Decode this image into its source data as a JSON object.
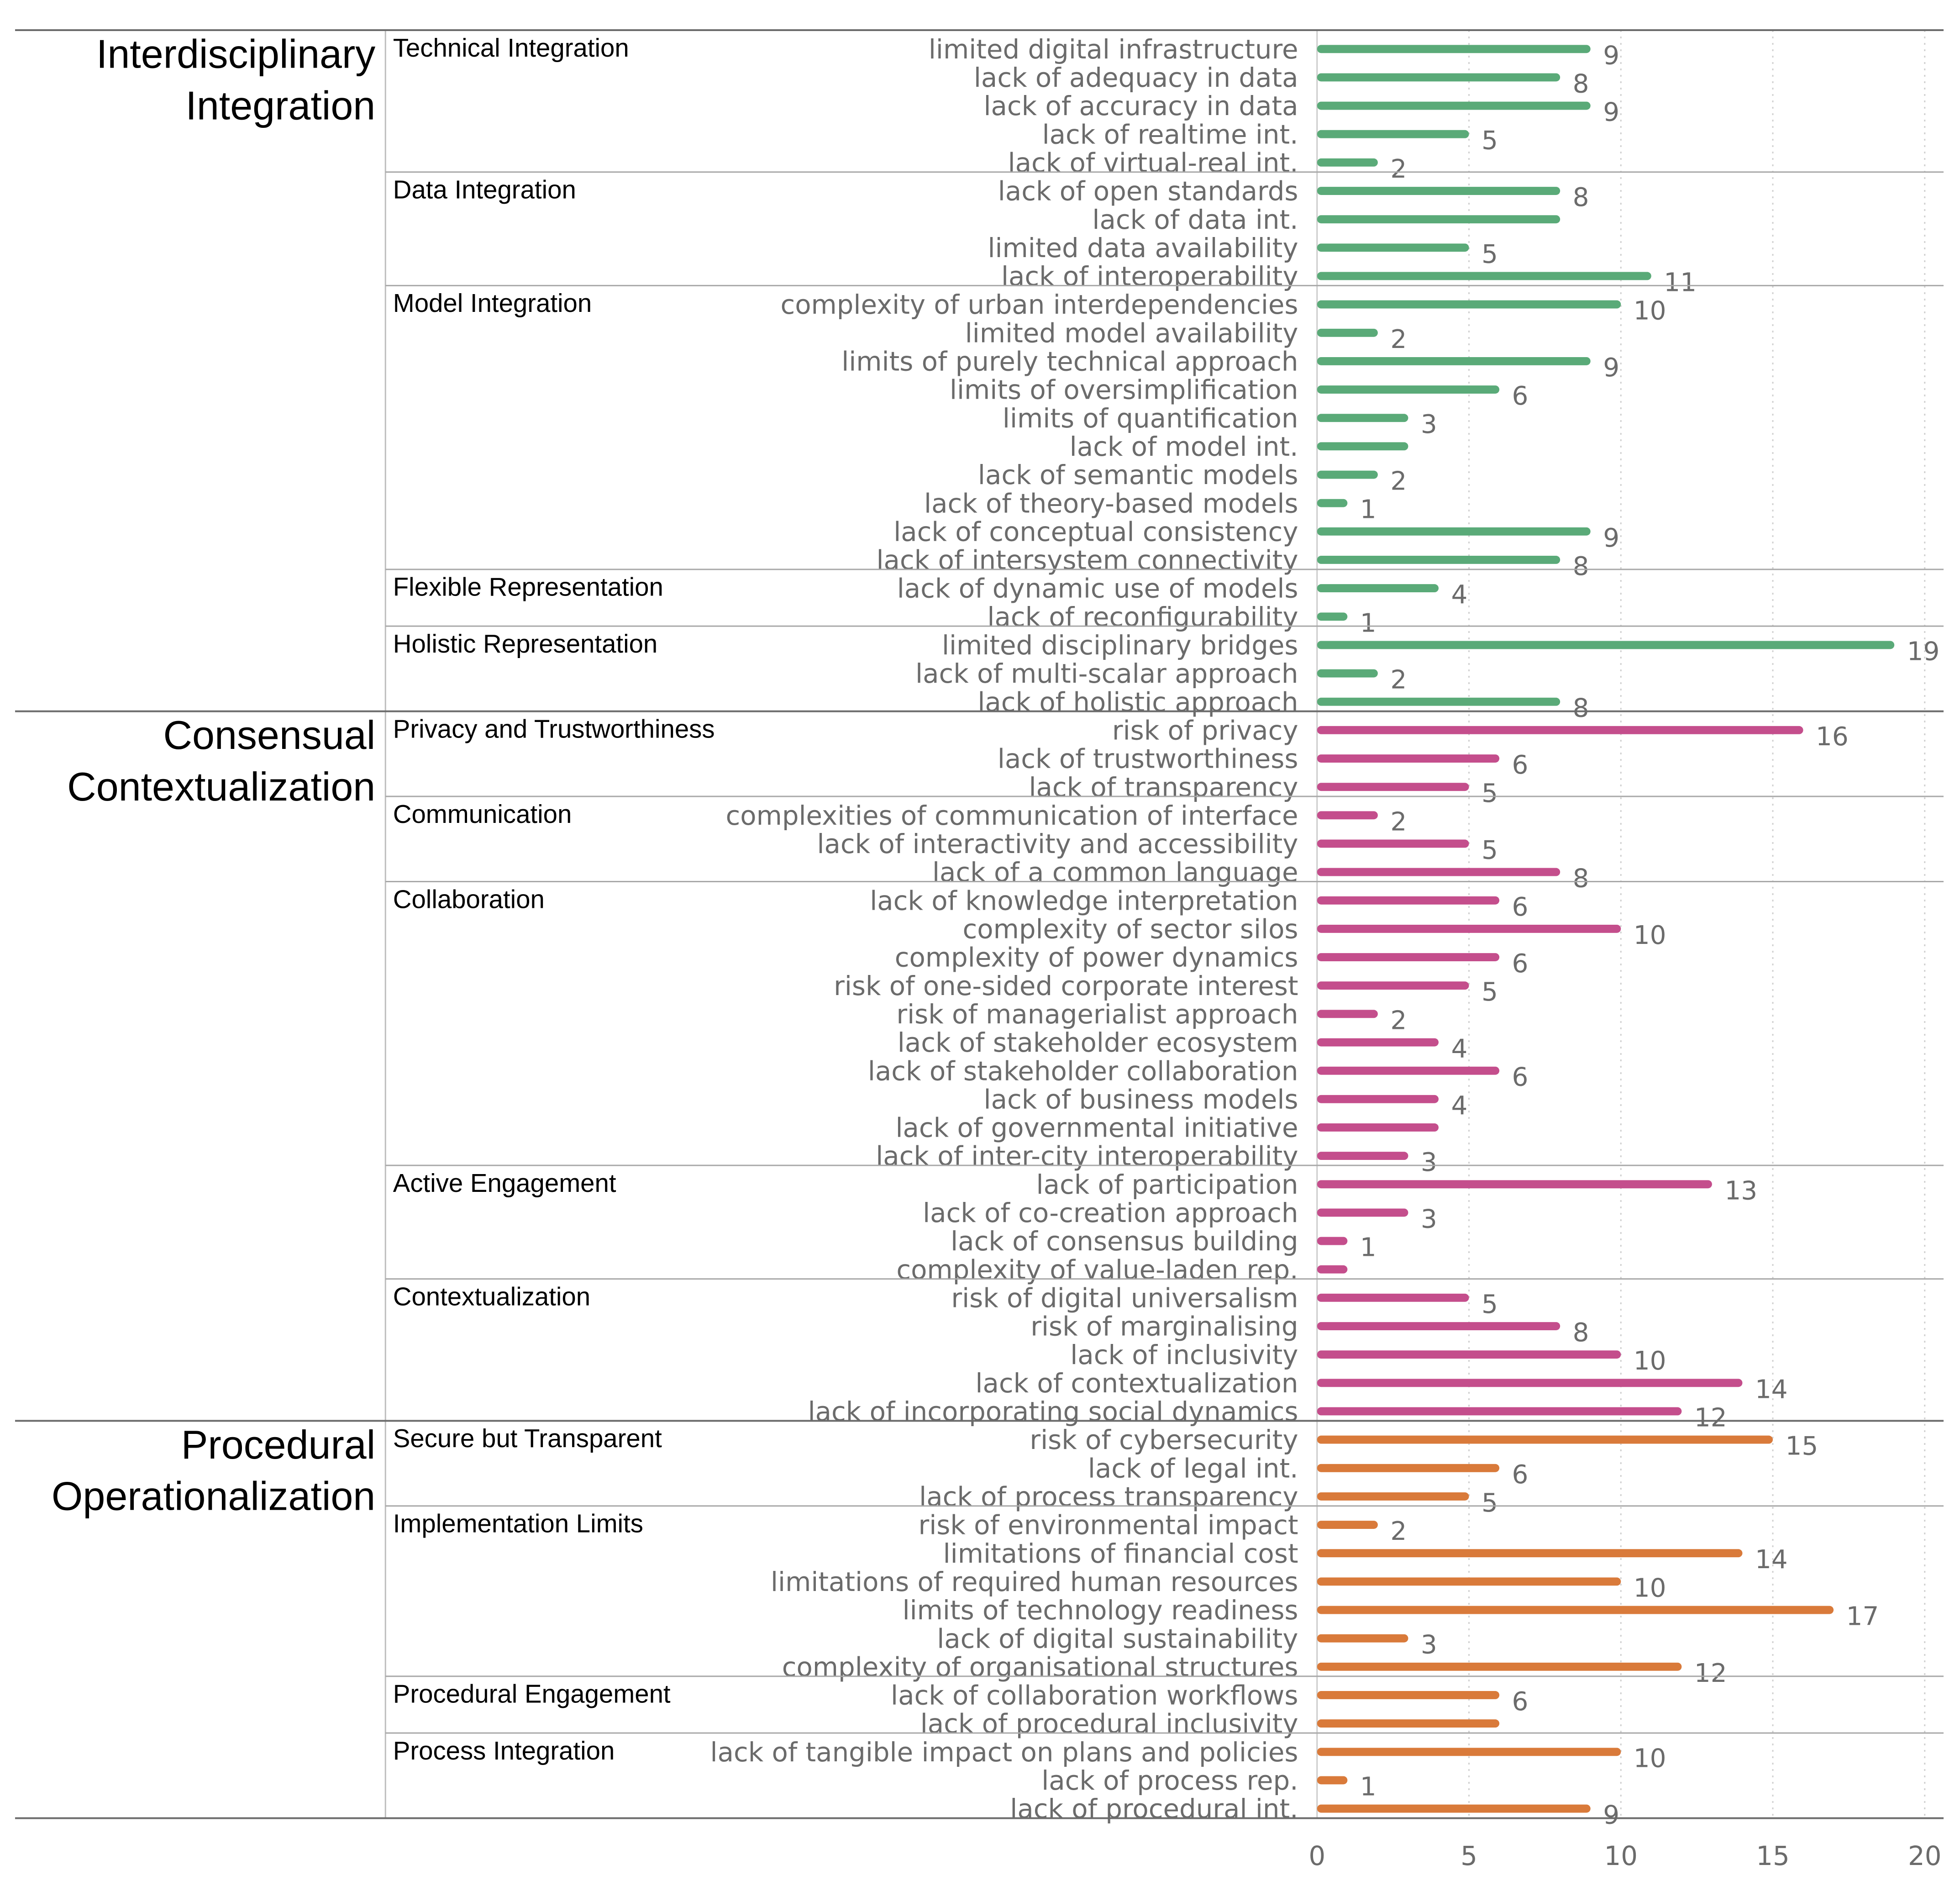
{
  "chart_data": {
    "type": "bar",
    "orientation": "horizontal",
    "xlim": [
      0,
      20
    ],
    "xticks": [
      0,
      5,
      10,
      15,
      20
    ],
    "grid": "vertical dotted",
    "colors": {
      "Interdisciplinary Integration": "#5aaa78",
      "Consensual Contextualization": "#c44e8c",
      "Procedural Operationalization": "#d97a3a"
    },
    "sections": [
      {
        "name": "Interdisciplinary Integration",
        "groups": [
          {
            "name": "Technical Integration",
            "items": [
              {
                "label": "limited digital infrastructure",
                "value": 9,
                "shown": "9"
              },
              {
                "label": "lack of adequacy in data",
                "value": 8,
                "shown": "8"
              },
              {
                "label": "lack of accuracy in data",
                "value": 9,
                "shown": "9"
              },
              {
                "label": "lack of realtime int.",
                "value": 5,
                "shown": "5"
              },
              {
                "label": "lack of virtual-real int.",
                "value": 2,
                "shown": "2"
              }
            ]
          },
          {
            "name": "Data Integration",
            "items": [
              {
                "label": "lack of open standards",
                "value": 8,
                "shown": "8"
              },
              {
                "label": "lack of data int.",
                "value": 8,
                "shown": ""
              },
              {
                "label": "limited data availability",
                "value": 5,
                "shown": "5"
              },
              {
                "label": "lack of interoperability",
                "value": 11,
                "shown": "11"
              }
            ]
          },
          {
            "name": "Model Integration",
            "items": [
              {
                "label": "complexity of urban interdependencies",
                "value": 10,
                "shown": "10"
              },
              {
                "label": "limited model availability",
                "value": 2,
                "shown": "2"
              },
              {
                "label": "limits of purely technical approach",
                "value": 9,
                "shown": "9"
              },
              {
                "label": "limits of oversimplification",
                "value": 6,
                "shown": "6"
              },
              {
                "label": "limits of quantification",
                "value": 3,
                "shown": "3"
              },
              {
                "label": "lack of model int.",
                "value": 3,
                "shown": ""
              },
              {
                "label": "lack of semantic models",
                "value": 2,
                "shown": "2"
              },
              {
                "label": "lack of theory-based models",
                "value": 1,
                "shown": "1"
              },
              {
                "label": "lack of conceptual consistency",
                "value": 9,
                "shown": "9"
              },
              {
                "label": "lack of intersystem connectivity",
                "value": 8,
                "shown": "8"
              }
            ]
          },
          {
            "name": "Flexible Representation",
            "items": [
              {
                "label": "lack of dynamic use of models",
                "value": 4,
                "shown": "4"
              },
              {
                "label": "lack of reconfigurability",
                "value": 1,
                "shown": "1"
              }
            ]
          },
          {
            "name": "Holistic Representation",
            "items": [
              {
                "label": "limited disciplinary bridges",
                "value": 19,
                "shown": "19"
              },
              {
                "label": "lack of multi-scalar approach",
                "value": 2,
                "shown": "2"
              },
              {
                "label": "lack of holistic approach",
                "value": 8,
                "shown": "8"
              }
            ]
          }
        ]
      },
      {
        "name": "Consensual Contextualization",
        "groups": [
          {
            "name": "Privacy and Trustworthiness",
            "items": [
              {
                "label": "risk of privacy",
                "value": 16,
                "shown": "16"
              },
              {
                "label": "lack of trustworthiness",
                "value": 6,
                "shown": "6"
              },
              {
                "label": "lack of transparency",
                "value": 5,
                "shown": "5"
              }
            ]
          },
          {
            "name": "Communication",
            "items": [
              {
                "label": "complexities of communication of interface",
                "value": 2,
                "shown": "2"
              },
              {
                "label": "lack of interactivity and accessibility",
                "value": 5,
                "shown": "5"
              },
              {
                "label": "lack of a common language",
                "value": 8,
                "shown": "8"
              }
            ]
          },
          {
            "name": "Collaboration",
            "items": [
              {
                "label": "lack of knowledge interpretation",
                "value": 6,
                "shown": "6"
              },
              {
                "label": "complexity of sector silos",
                "value": 10,
                "shown": "10"
              },
              {
                "label": "complexity of power dynamics",
                "value": 6,
                "shown": "6"
              },
              {
                "label": "risk of one-sided corporate interest",
                "value": 5,
                "shown": "5"
              },
              {
                "label": "risk of managerialist approach",
                "value": 2,
                "shown": "2"
              },
              {
                "label": "lack of stakeholder ecosystem",
                "value": 4,
                "shown": "4"
              },
              {
                "label": "lack of stakeholder collaboration",
                "value": 6,
                "shown": "6"
              },
              {
                "label": "lack of business models",
                "value": 4,
                "shown": "4"
              },
              {
                "label": "lack of governmental initiative",
                "value": 4,
                "shown": ""
              },
              {
                "label": "lack of inter-city interoperability",
                "value": 3,
                "shown": "3"
              }
            ]
          },
          {
            "name": "Active Engagement",
            "items": [
              {
                "label": "lack of participation",
                "value": 13,
                "shown": "13"
              },
              {
                "label": "lack of co-creation approach",
                "value": 3,
                "shown": "3"
              },
              {
                "label": "lack of consensus building",
                "value": 1,
                "shown": "1"
              },
              {
                "label": "complexity of value-laden rep.",
                "value": 1,
                "shown": ""
              }
            ]
          },
          {
            "name": "Contextualization",
            "items": [
              {
                "label": "risk of digital universalism",
                "value": 5,
                "shown": "5"
              },
              {
                "label": "risk of marginalising",
                "value": 8,
                "shown": "8"
              },
              {
                "label": "lack of inclusivity",
                "value": 10,
                "shown": "10"
              },
              {
                "label": "lack of contextualization",
                "value": 14,
                "shown": "14"
              },
              {
                "label": "lack of incorporating social dynamics",
                "value": 12,
                "shown": "12"
              }
            ]
          }
        ]
      },
      {
        "name": "Procedural Operationalization",
        "groups": [
          {
            "name": "Secure but Transparent",
            "items": [
              {
                "label": "risk of cybersecurity",
                "value": 15,
                "shown": "15"
              },
              {
                "label": "lack of legal int.",
                "value": 6,
                "shown": "6"
              },
              {
                "label": "lack of process transparency",
                "value": 5,
                "shown": "5"
              }
            ]
          },
          {
            "name": "Implementation Limits",
            "items": [
              {
                "label": "risk of environmental impact",
                "value": 2,
                "shown": "2"
              },
              {
                "label": "limitations of financial cost",
                "value": 14,
                "shown": "14"
              },
              {
                "label": "limitations of required human resources",
                "value": 10,
                "shown": "10"
              },
              {
                "label": "limits of technology readiness",
                "value": 17,
                "shown": "17"
              },
              {
                "label": "lack of digital sustainability",
                "value": 3,
                "shown": "3"
              },
              {
                "label": "complexity of organisational structures",
                "value": 12,
                "shown": "12"
              }
            ]
          },
          {
            "name": "Procedural Engagement",
            "items": [
              {
                "label": "lack of collaboration workflows",
                "value": 6,
                "shown": "6"
              },
              {
                "label": "lack of procedural inclusivity",
                "value": 6,
                "shown": ""
              }
            ]
          },
          {
            "name": "Process Integration",
            "items": [
              {
                "label": "lack of tangible impact on plans and policies",
                "value": 10,
                "shown": "10"
              },
              {
                "label": "lack of process rep.",
                "value": 1,
                "shown": "1"
              },
              {
                "label": "lack of procedural int.",
                "value": 9,
                "shown": "9"
              }
            ]
          }
        ]
      }
    ]
  }
}
